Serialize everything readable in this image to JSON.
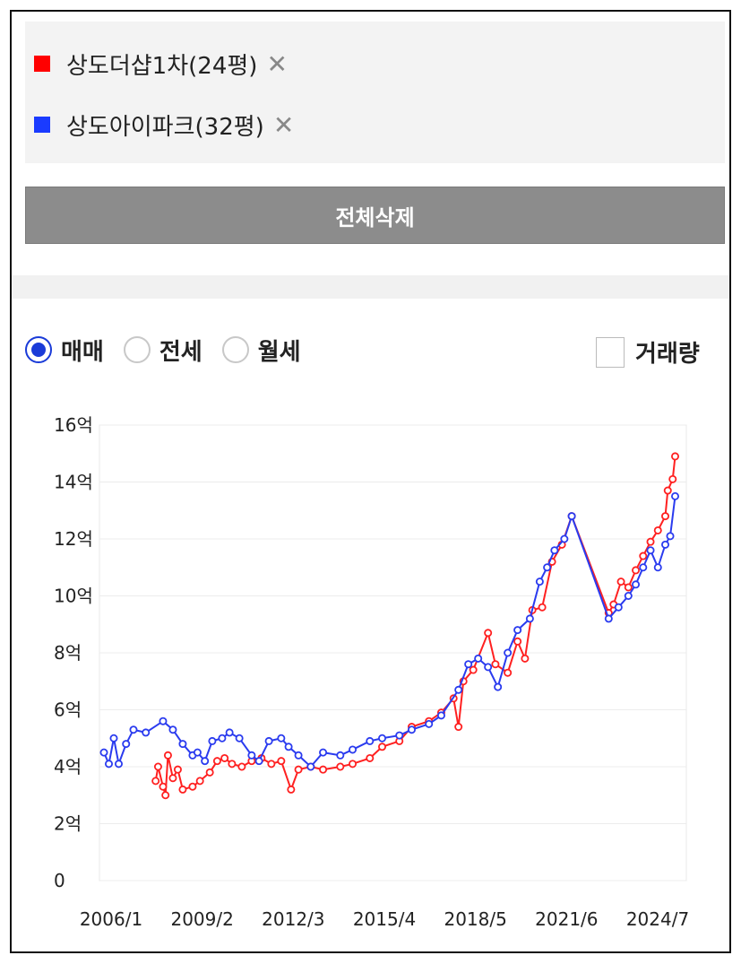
{
  "legend_items": [
    {
      "label": "상도더샵1차(24평)",
      "color": "#ff0000",
      "remove": "✕"
    },
    {
      "label": "상도아이파크(32평)",
      "color": "#1a3bff",
      "remove": "✕"
    }
  ],
  "clear_all_label": "전체삭제",
  "radios": [
    {
      "label": "매매",
      "selected": true
    },
    {
      "label": "전세",
      "selected": false
    },
    {
      "label": "월세",
      "selected": false
    }
  ],
  "volume_checkbox": {
    "label": "거래량",
    "checked": false
  },
  "chart_data": {
    "type": "line",
    "x_ticks": [
      "2006/1",
      "2009/2",
      "2012/3",
      "2015/4",
      "2018/5",
      "2021/6",
      "2024/7"
    ],
    "y_ticks": [
      "0",
      "2억",
      "4억",
      "6억",
      "8억",
      "10억",
      "12억",
      "14억",
      "16억"
    ],
    "ylim": [
      0,
      16
    ],
    "y_unit": "억",
    "grid": true,
    "series": [
      {
        "name": "상도더샵1차(24평)",
        "color": "#ff2020",
        "points": [
          [
            "2007/10",
            3.5
          ],
          [
            "2007/11",
            4.0
          ],
          [
            "2008/1",
            3.3
          ],
          [
            "2008/2",
            3.0
          ],
          [
            "2008/3",
            4.4
          ],
          [
            "2008/5",
            3.6
          ],
          [
            "2008/7",
            3.9
          ],
          [
            "2008/9",
            3.2
          ],
          [
            "2009/1",
            3.3
          ],
          [
            "2009/4",
            3.5
          ],
          [
            "2009/8",
            3.8
          ],
          [
            "2009/11",
            4.2
          ],
          [
            "2010/2",
            4.3
          ],
          [
            "2010/5",
            4.1
          ],
          [
            "2010/9",
            4.0
          ],
          [
            "2011/1",
            4.2
          ],
          [
            "2011/5",
            4.3
          ],
          [
            "2011/9",
            4.1
          ],
          [
            "2012/1",
            4.2
          ],
          [
            "2012/5",
            3.2
          ],
          [
            "2012/8",
            3.9
          ],
          [
            "2013/1",
            4.0
          ],
          [
            "2013/6",
            3.9
          ],
          [
            "2014/1",
            4.0
          ],
          [
            "2014/6",
            4.1
          ],
          [
            "2015/1",
            4.3
          ],
          [
            "2015/6",
            4.7
          ],
          [
            "2016/1",
            4.9
          ],
          [
            "2016/6",
            5.4
          ],
          [
            "2017/1",
            5.6
          ],
          [
            "2017/6",
            5.9
          ],
          [
            "2017/11",
            6.4
          ],
          [
            "2018/1",
            5.4
          ],
          [
            "2018/3",
            7.0
          ],
          [
            "2018/7",
            7.4
          ],
          [
            "2019/1",
            8.7
          ],
          [
            "2019/4",
            7.6
          ],
          [
            "2019/9",
            7.3
          ],
          [
            "2020/1",
            8.4
          ],
          [
            "2020/4",
            7.8
          ],
          [
            "2020/7",
            9.5
          ],
          [
            "2020/11",
            9.6
          ],
          [
            "2021/3",
            11.2
          ],
          [
            "2021/7",
            11.8
          ],
          [
            "2021/11",
            12.8
          ],
          [
            "2023/2",
            9.4
          ],
          [
            "2023/4",
            9.7
          ],
          [
            "2023/7",
            10.5
          ],
          [
            "2023/10",
            10.3
          ],
          [
            "2024/1",
            10.9
          ],
          [
            "2024/4",
            11.4
          ],
          [
            "2024/7",
            11.9
          ],
          [
            "2024/10",
            12.3
          ],
          [
            "2025/1",
            12.8
          ],
          [
            "2025/2",
            13.7
          ],
          [
            "2025/4",
            14.1
          ],
          [
            "2025/5",
            14.9
          ]
        ]
      },
      {
        "name": "상도아이파크(32평)",
        "color": "#2a3bef",
        "points": [
          [
            "2006/1",
            4.5
          ],
          [
            "2006/3",
            4.1
          ],
          [
            "2006/5",
            5.0
          ],
          [
            "2006/7",
            4.1
          ],
          [
            "2006/10",
            4.8
          ],
          [
            "2007/1",
            5.3
          ],
          [
            "2007/6",
            5.2
          ],
          [
            "2008/1",
            5.6
          ],
          [
            "2008/5",
            5.3
          ],
          [
            "2008/9",
            4.8
          ],
          [
            "2009/1",
            4.4
          ],
          [
            "2009/3",
            4.5
          ],
          [
            "2009/6",
            4.2
          ],
          [
            "2009/9",
            4.9
          ],
          [
            "2010/1",
            5.0
          ],
          [
            "2010/4",
            5.2
          ],
          [
            "2010/8",
            5.0
          ],
          [
            "2011/1",
            4.4
          ],
          [
            "2011/4",
            4.2
          ],
          [
            "2011/8",
            4.9
          ],
          [
            "2012/1",
            5.0
          ],
          [
            "2012/4",
            4.7
          ],
          [
            "2012/8",
            4.4
          ],
          [
            "2013/1",
            4.0
          ],
          [
            "2013/6",
            4.5
          ],
          [
            "2014/1",
            4.4
          ],
          [
            "2014/6",
            4.6
          ],
          [
            "2015/1",
            4.9
          ],
          [
            "2015/6",
            5.0
          ],
          [
            "2016/1",
            5.1
          ],
          [
            "2016/6",
            5.3
          ],
          [
            "2017/1",
            5.5
          ],
          [
            "2017/6",
            5.8
          ],
          [
            "2018/1",
            6.7
          ],
          [
            "2018/5",
            7.6
          ],
          [
            "2018/9",
            7.8
          ],
          [
            "2019/1",
            7.5
          ],
          [
            "2019/5",
            6.8
          ],
          [
            "2019/9",
            8.0
          ],
          [
            "2020/1",
            8.8
          ],
          [
            "2020/6",
            9.2
          ],
          [
            "2020/10",
            10.5
          ],
          [
            "2021/1",
            11.0
          ],
          [
            "2021/4",
            11.6
          ],
          [
            "2021/8",
            12.0
          ],
          [
            "2021/11",
            12.8
          ],
          [
            "2023/2",
            9.2
          ],
          [
            "2023/6",
            9.6
          ],
          [
            "2023/10",
            10.0
          ],
          [
            "2024/1",
            10.4
          ],
          [
            "2024/4",
            11.0
          ],
          [
            "2024/7",
            11.6
          ],
          [
            "2024/10",
            11.0
          ],
          [
            "2025/1",
            11.8
          ],
          [
            "2025/3",
            12.1
          ],
          [
            "2025/5",
            13.5
          ]
        ]
      }
    ]
  }
}
